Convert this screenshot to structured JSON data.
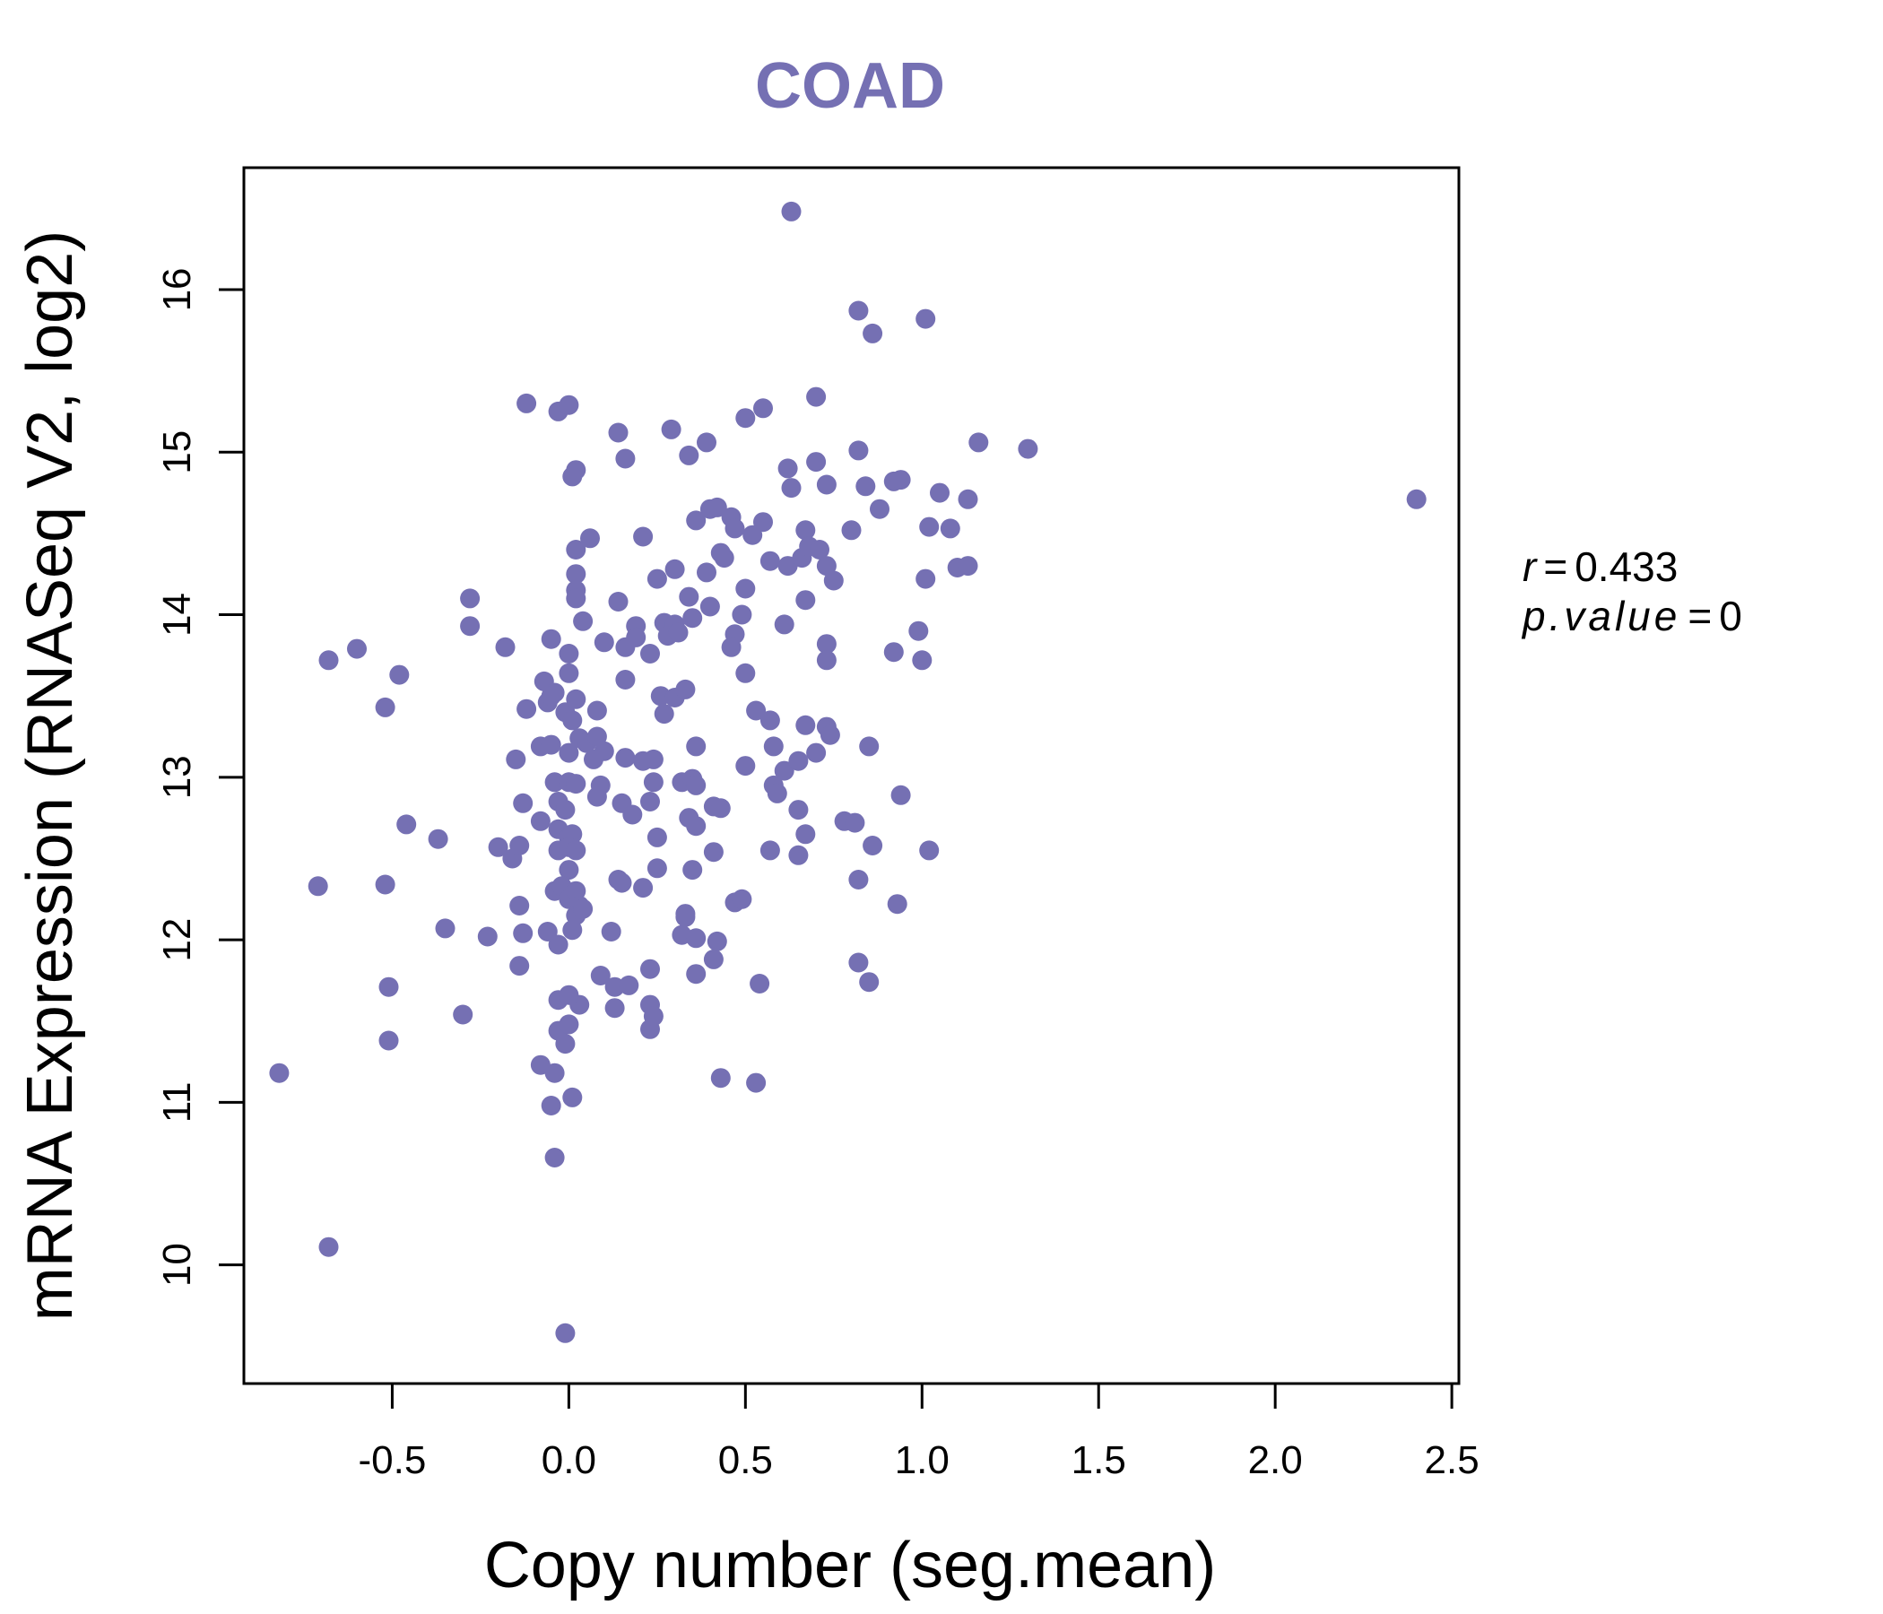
{
  "chart_data": {
    "type": "scatter",
    "title": "COAD",
    "xlabel": "Copy number (seg.mean)",
    "ylabel": "mRNA Expression (RNASeq V2, log2)",
    "xlim": [
      -0.92,
      2.52
    ],
    "ylim": [
      9.27,
      16.75
    ],
    "xticks": [
      -0.5,
      0.0,
      0.5,
      1.0,
      1.5,
      2.0,
      2.5
    ],
    "xtick_labels": [
      "-0.5",
      "0.0",
      "0.5",
      "1.0",
      "1.5",
      "2.0",
      "2.5"
    ],
    "yticks": [
      10,
      11,
      12,
      13,
      14,
      15,
      16
    ],
    "ytick_labels": [
      "10",
      "11",
      "12",
      "13",
      "14",
      "15",
      "16"
    ],
    "point_color": "#7570b3",
    "stats": {
      "r_symbol": "r",
      "r_value": "0.433",
      "p_symbol": "p.value",
      "p_value": "0"
    },
    "points": [
      [
        0.63,
        16.48
      ],
      [
        0.82,
        15.87
      ],
      [
        0.86,
        15.73
      ],
      [
        1.01,
        15.82
      ],
      [
        -0.12,
        15.3
      ],
      [
        -0.03,
        15.25
      ],
      [
        0.0,
        15.29
      ],
      [
        0.14,
        15.12
      ],
      [
        0.29,
        15.14
      ],
      [
        0.39,
        15.06
      ],
      [
        0.5,
        15.21
      ],
      [
        0.55,
        15.27
      ],
      [
        0.7,
        15.34
      ],
      [
        0.16,
        14.96
      ],
      [
        0.34,
        14.98
      ],
      [
        0.02,
        14.89
      ],
      [
        0.01,
        14.85
      ],
      [
        0.62,
        14.9
      ],
      [
        0.7,
        14.94
      ],
      [
        0.82,
        15.01
      ],
      [
        1.16,
        15.06
      ],
      [
        1.3,
        15.02
      ],
      [
        0.63,
        14.78
      ],
      [
        0.73,
        14.8
      ],
      [
        0.84,
        14.79
      ],
      [
        0.92,
        14.82
      ],
      [
        0.94,
        14.83
      ],
      [
        1.05,
        14.75
      ],
      [
        1.13,
        14.71
      ],
      [
        2.4,
        14.71
      ],
      [
        0.4,
        14.65
      ],
      [
        0.42,
        14.66
      ],
      [
        0.46,
        14.6
      ],
      [
        0.36,
        14.58
      ],
      [
        0.55,
        14.57
      ],
      [
        0.88,
        14.65
      ],
      [
        0.06,
        14.47
      ],
      [
        0.21,
        14.48
      ],
      [
        0.47,
        14.53
      ],
      [
        0.52,
        14.49
      ],
      [
        0.67,
        14.52
      ],
      [
        0.8,
        14.52
      ],
      [
        1.02,
        14.54
      ],
      [
        1.08,
        14.53
      ],
      [
        0.02,
        14.4
      ],
      [
        0.43,
        14.38
      ],
      [
        0.44,
        14.35
      ],
      [
        0.57,
        14.33
      ],
      [
        0.62,
        14.3
      ],
      [
        0.66,
        14.35
      ],
      [
        0.68,
        14.42
      ],
      [
        0.71,
        14.4
      ],
      [
        0.73,
        14.3
      ],
      [
        1.1,
        14.29
      ],
      [
        1.13,
        14.3
      ],
      [
        0.02,
        14.25
      ],
      [
        0.02,
        14.15
      ],
      [
        0.02,
        14.1
      ],
      [
        0.25,
        14.22
      ],
      [
        0.3,
        14.28
      ],
      [
        0.39,
        14.26
      ],
      [
        0.5,
        14.16
      ],
      [
        0.75,
        14.21
      ],
      [
        1.01,
        14.22
      ],
      [
        -0.28,
        14.1
      ],
      [
        0.14,
        14.08
      ],
      [
        0.34,
        14.11
      ],
      [
        0.4,
        14.05
      ],
      [
        0.67,
        14.09
      ],
      [
        -0.28,
        13.93
      ],
      [
        0.04,
        13.96
      ],
      [
        0.19,
        13.93
      ],
      [
        0.27,
        13.95
      ],
      [
        0.3,
        13.94
      ],
      [
        0.35,
        13.98
      ],
      [
        0.47,
        13.88
      ],
      [
        0.49,
        14.0
      ],
      [
        0.61,
        13.94
      ],
      [
        0.99,
        13.9
      ],
      [
        -0.6,
        13.79
      ],
      [
        -0.68,
        13.72
      ],
      [
        -0.18,
        13.8
      ],
      [
        -0.05,
        13.85
      ],
      [
        0.0,
        13.76
      ],
      [
        0.1,
        13.83
      ],
      [
        0.16,
        13.8
      ],
      [
        0.19,
        13.86
      ],
      [
        0.23,
        13.76
      ],
      [
        0.28,
        13.87
      ],
      [
        0.31,
        13.89
      ],
      [
        0.46,
        13.8
      ],
      [
        0.73,
        13.82
      ],
      [
        0.73,
        13.72
      ],
      [
        0.92,
        13.77
      ],
      [
        1.0,
        13.72
      ],
      [
        -0.48,
        13.63
      ],
      [
        -0.07,
        13.59
      ],
      [
        0.0,
        13.64
      ],
      [
        -0.04,
        13.52
      ],
      [
        0.16,
        13.6
      ],
      [
        0.26,
        13.5
      ],
      [
        0.3,
        13.49
      ],
      [
        0.33,
        13.54
      ],
      [
        0.5,
        13.64
      ],
      [
        -0.52,
        13.43
      ],
      [
        -0.12,
        13.42
      ],
      [
        -0.06,
        13.46
      ],
      [
        -0.05,
        13.5
      ],
      [
        -0.01,
        13.4
      ],
      [
        0.01,
        13.35
      ],
      [
        0.02,
        13.48
      ],
      [
        0.08,
        13.41
      ],
      [
        0.27,
        13.39
      ],
      [
        0.53,
        13.41
      ],
      [
        0.57,
        13.35
      ],
      [
        0.67,
        13.32
      ],
      [
        0.73,
        13.31
      ],
      [
        0.74,
        13.26
      ],
      [
        -0.15,
        13.11
      ],
      [
        -0.08,
        13.19
      ],
      [
        -0.05,
        13.2
      ],
      [
        0.0,
        13.15
      ],
      [
        0.03,
        13.24
      ],
      [
        0.05,
        13.21
      ],
      [
        0.08,
        13.25
      ],
      [
        0.1,
        13.16
      ],
      [
        0.07,
        13.11
      ],
      [
        0.16,
        13.12
      ],
      [
        0.21,
        13.1
      ],
      [
        0.24,
        13.11
      ],
      [
        0.36,
        13.19
      ],
      [
        0.5,
        13.07
      ],
      [
        0.58,
        13.19
      ],
      [
        0.61,
        13.04
      ],
      [
        0.65,
        13.1
      ],
      [
        0.7,
        13.15
      ],
      [
        0.85,
        13.19
      ],
      [
        -0.04,
        12.97
      ],
      [
        0.0,
        12.97
      ],
      [
        0.02,
        12.96
      ],
      [
        0.09,
        12.95
      ],
      [
        0.08,
        12.88
      ],
      [
        0.15,
        12.84
      ],
      [
        0.18,
        12.77
      ],
      [
        0.23,
        12.85
      ],
      [
        0.24,
        12.97
      ],
      [
        0.32,
        12.97
      ],
      [
        0.35,
        12.99
      ],
      [
        0.36,
        12.95
      ],
      [
        0.41,
        12.82
      ],
      [
        0.43,
        12.81
      ],
      [
        0.58,
        12.95
      ],
      [
        0.59,
        12.9
      ],
      [
        0.65,
        12.8
      ],
      [
        0.94,
        12.89
      ],
      [
        -0.13,
        12.84
      ],
      [
        -0.03,
        12.85
      ],
      [
        -0.01,
        12.8
      ],
      [
        -0.46,
        12.71
      ],
      [
        -0.37,
        12.62
      ],
      [
        -0.08,
        12.73
      ],
      [
        -0.03,
        12.68
      ],
      [
        0.0,
        12.63
      ],
      [
        0.01,
        12.65
      ],
      [
        0.34,
        12.75
      ],
      [
        0.36,
        12.7
      ],
      [
        0.25,
        12.63
      ],
      [
        0.67,
        12.65
      ],
      [
        0.78,
        12.73
      ],
      [
        0.81,
        12.72
      ],
      [
        -0.2,
        12.57
      ],
      [
        -0.16,
        12.5
      ],
      [
        -0.14,
        12.58
      ],
      [
        -0.03,
        12.55
      ],
      [
        0.0,
        12.57
      ],
      [
        0.02,
        12.55
      ],
      [
        0.0,
        12.43
      ],
      [
        0.25,
        12.44
      ],
      [
        0.41,
        12.54
      ],
      [
        0.57,
        12.55
      ],
      [
        0.65,
        12.52
      ],
      [
        0.86,
        12.58
      ],
      [
        1.02,
        12.55
      ],
      [
        -0.71,
        12.33
      ],
      [
        -0.52,
        12.34
      ],
      [
        -0.14,
        12.21
      ],
      [
        -0.04,
        12.3
      ],
      [
        -0.02,
        12.33
      ],
      [
        0.0,
        12.25
      ],
      [
        0.02,
        12.3
      ],
      [
        0.03,
        12.21
      ],
      [
        0.02,
        12.15
      ],
      [
        0.04,
        12.19
      ],
      [
        0.14,
        12.37
      ],
      [
        0.15,
        12.35
      ],
      [
        0.21,
        12.32
      ],
      [
        0.33,
        12.16
      ],
      [
        0.35,
        12.43
      ],
      [
        0.47,
        12.23
      ],
      [
        0.49,
        12.25
      ],
      [
        0.82,
        12.37
      ],
      [
        0.93,
        12.22
      ],
      [
        -0.35,
        12.07
      ],
      [
        -0.23,
        12.02
      ],
      [
        -0.13,
        12.04
      ],
      [
        -0.06,
        12.05
      ],
      [
        -0.03,
        11.97
      ],
      [
        0.01,
        12.06
      ],
      [
        0.12,
        12.05
      ],
      [
        0.32,
        12.03
      ],
      [
        0.33,
        12.14
      ],
      [
        0.36,
        12.01
      ],
      [
        0.42,
        11.99
      ],
      [
        -0.14,
        11.84
      ],
      [
        -0.51,
        11.71
      ],
      [
        0.09,
        11.78
      ],
      [
        0.13,
        11.71
      ],
      [
        0.17,
        11.72
      ],
      [
        0.23,
        11.82
      ],
      [
        0.36,
        11.79
      ],
      [
        0.41,
        11.88
      ],
      [
        0.54,
        11.73
      ],
      [
        0.82,
        11.86
      ],
      [
        0.85,
        11.74
      ],
      [
        -0.3,
        11.54
      ],
      [
        -0.51,
        11.38
      ],
      [
        -0.03,
        11.63
      ],
      [
        0.03,
        11.6
      ],
      [
        0.13,
        11.58
      ],
      [
        0.23,
        11.6
      ],
      [
        0.23,
        11.45
      ],
      [
        0.24,
        11.53
      ],
      [
        0.0,
        11.66
      ],
      [
        -0.03,
        11.44
      ],
      [
        0.0,
        11.48
      ],
      [
        -0.01,
        11.36
      ],
      [
        -0.08,
        11.23
      ],
      [
        -0.04,
        11.18
      ],
      [
        -0.05,
        10.98
      ],
      [
        0.01,
        11.03
      ],
      [
        0.43,
        11.15
      ],
      [
        0.53,
        11.12
      ],
      [
        -0.82,
        11.18
      ],
      [
        -0.04,
        10.66
      ],
      [
        -0.68,
        10.11
      ],
      [
        -0.01,
        9.58
      ]
    ]
  }
}
